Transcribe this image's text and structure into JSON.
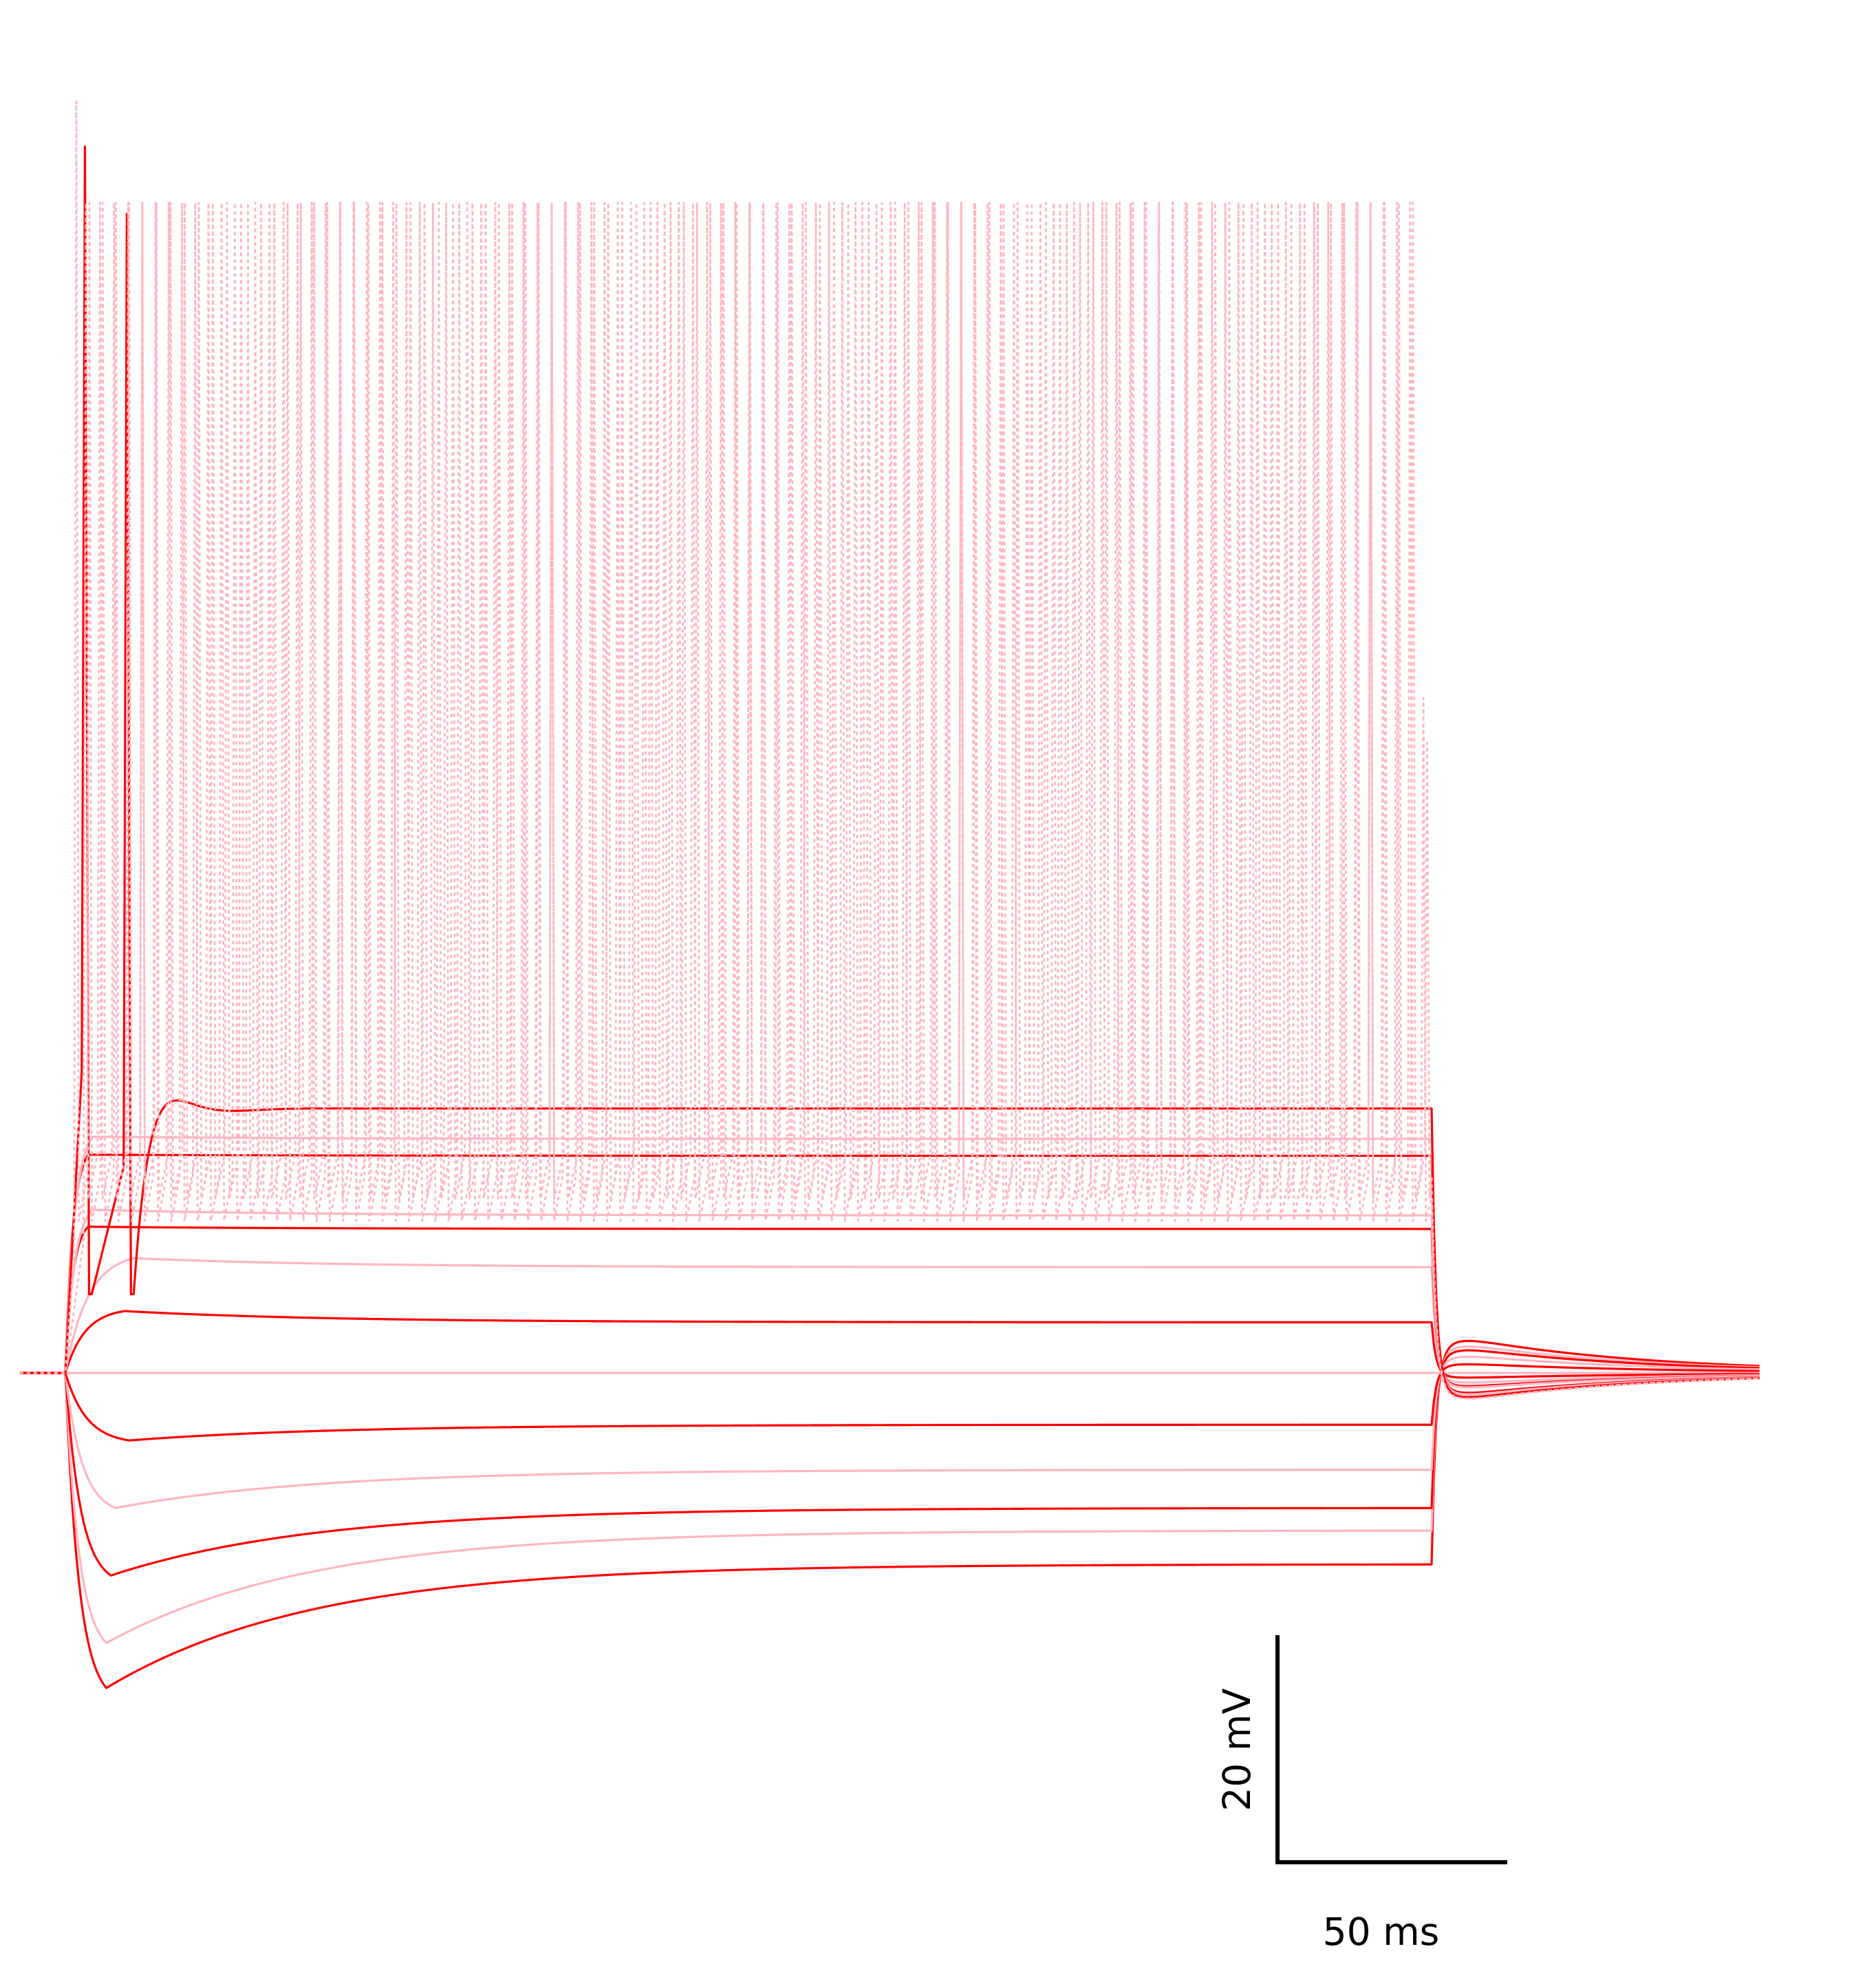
{
  "chart_data": {
    "type": "line",
    "title": "",
    "xlabel": "",
    "ylabel": "",
    "description_units": {
      "x": "ms",
      "y": "mV"
    },
    "xlim": [
      -10,
      400
    ],
    "ylim": [
      -95,
      67
    ],
    "stimulus": {
      "onset_ms": 0,
      "offset_ms": 300
    },
    "resting_potential_mV": -70,
    "colors": {
      "solid_dark": "#ff0000",
      "solid_light": "#ffb6c1",
      "dashed": "#ffb6c1",
      "scale_bar": "#000000"
    },
    "series": [
      {
        "style": "solid",
        "color": "#ff0000",
        "kind": "hyper",
        "peak_mV": -98,
        "steady_mV": -87,
        "t_peak_ms": 9
      },
      {
        "style": "solid",
        "color": "#ffb6c1",
        "kind": "hyper",
        "peak_mV": -94,
        "steady_mV": -84,
        "t_peak_ms": 9
      },
      {
        "style": "solid",
        "color": "#ff0000",
        "kind": "hyper",
        "peak_mV": -88,
        "steady_mV": -82,
        "t_peak_ms": 10
      },
      {
        "style": "solid",
        "color": "#ffb6c1",
        "kind": "hyper",
        "peak_mV": -82,
        "steady_mV": -78.6,
        "t_peak_ms": 11
      },
      {
        "style": "solid",
        "color": "#ff0000",
        "kind": "hyper",
        "peak_mV": -76,
        "steady_mV": -74.6,
        "t_peak_ms": 14
      },
      {
        "style": "solid",
        "color": "#ffb6c1",
        "kind": "flat",
        "steady_mV": -70
      },
      {
        "style": "solid",
        "color": "#ff0000",
        "kind": "depol",
        "peak_mV": -64.5,
        "steady_mV": -65.5,
        "t_peak_ms": 13
      },
      {
        "style": "solid",
        "color": "#ffb6c1",
        "kind": "depol",
        "peak_mV": -59.8,
        "steady_mV": -60.6,
        "t_peak_ms": 15
      },
      {
        "style": "solid",
        "color": "#ff0000",
        "kind": "depol",
        "peak_mV": -57,
        "steady_mV": -57.2,
        "t_peak_ms": 5
      },
      {
        "style": "solid",
        "color": "#ffb6c1",
        "kind": "depol",
        "peak_mV": -55.5,
        "steady_mV": -56,
        "t_peak_ms": 6
      },
      {
        "style": "solid",
        "color": "#ff0000",
        "kind": "depol",
        "peak_mV": -50.6,
        "steady_mV": -50.7,
        "t_peak_ms": 5
      },
      {
        "style": "solid",
        "color": "#ffb6c1",
        "kind": "depol",
        "peak_mV": -49,
        "steady_mV": -49.2,
        "t_peak_ms": 6
      },
      {
        "style": "solid",
        "color": "#ff0000",
        "kind": "spikes",
        "steady_mV": -46.5,
        "spike_times_ms": [
          4.3,
          13.5
        ],
        "spike_peaks_mV": [
          39,
          33
        ],
        "trough_mV": -63,
        "ringing_peak_mV": -40.5,
        "t_ring_ms": 23
      },
      {
        "style": "dashed",
        "color": "#ffb6c1",
        "kind": "train",
        "first_spike_ms": 2.4,
        "isi_ms": 2.9,
        "n_spikes": 103,
        "first_peak_mV": 43,
        "peak_mV": 34,
        "trough_mV": -56.5,
        "last_peak_mV": -10
      },
      {
        "style": "dashed",
        "color": "#ffb6c1",
        "kind": "train",
        "first_spike_ms": 4.5,
        "isi_ms": 3.1,
        "n_spikes": 96,
        "first_peak_mV": 34,
        "peak_mV": 34,
        "trough_mV": -54.5,
        "last_peak_mV": -14
      }
    ],
    "scale_bars": {
      "x_label": "50 ms",
      "x_ms": 50,
      "y_label": "20 mV",
      "y_mV": 20
    }
  }
}
